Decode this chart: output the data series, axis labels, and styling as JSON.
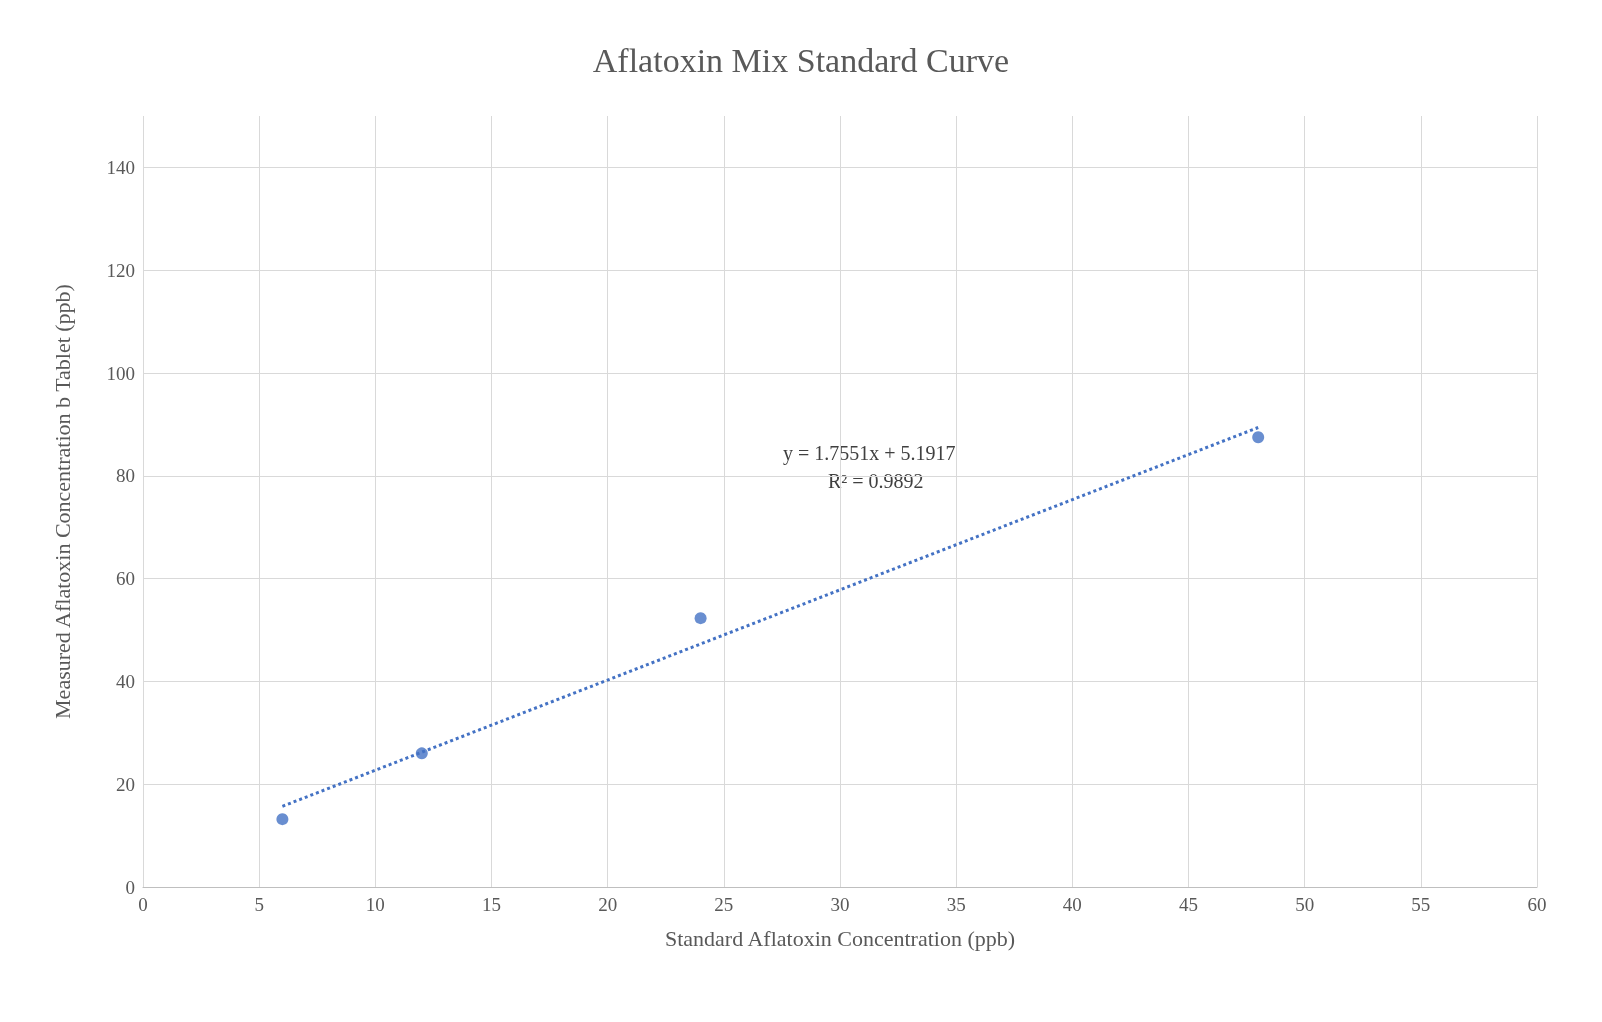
{
  "chart_data": {
    "type": "scatter",
    "title": "Aflatoxin Mix Standard Curve",
    "xlabel": "Standard Aflatoxin Concentration (ppb)",
    "ylabel": "Measured Aflatoxin Concentration b Tablet (ppb)",
    "series": [
      {
        "color": "#4472c4",
        "x": [
          6,
          12,
          24,
          48
        ],
        "values": [
          13.2,
          26,
          52.3,
          87.5
        ],
        "marker": "circle"
      },
      {
        "type": "line",
        "color": "#4472c4",
        "x": [
          6,
          48
        ],
        "values": [
          15.7,
          89.4
        ],
        "line_style": "dotted",
        "marker": "none"
      }
    ],
    "annotations": [
      "y = 1.7551x + 5.1917",
      "R² = 0.9892"
    ],
    "xlim": [
      0,
      60
    ],
    "xticks": [
      0,
      5,
      10,
      15,
      20,
      25,
      30,
      35,
      40,
      45,
      50,
      55,
      60
    ],
    "ylim": [
      0,
      150
    ],
    "yticks": [
      0,
      20,
      40,
      60,
      80,
      100,
      120,
      140
    ],
    "grid": true
  }
}
